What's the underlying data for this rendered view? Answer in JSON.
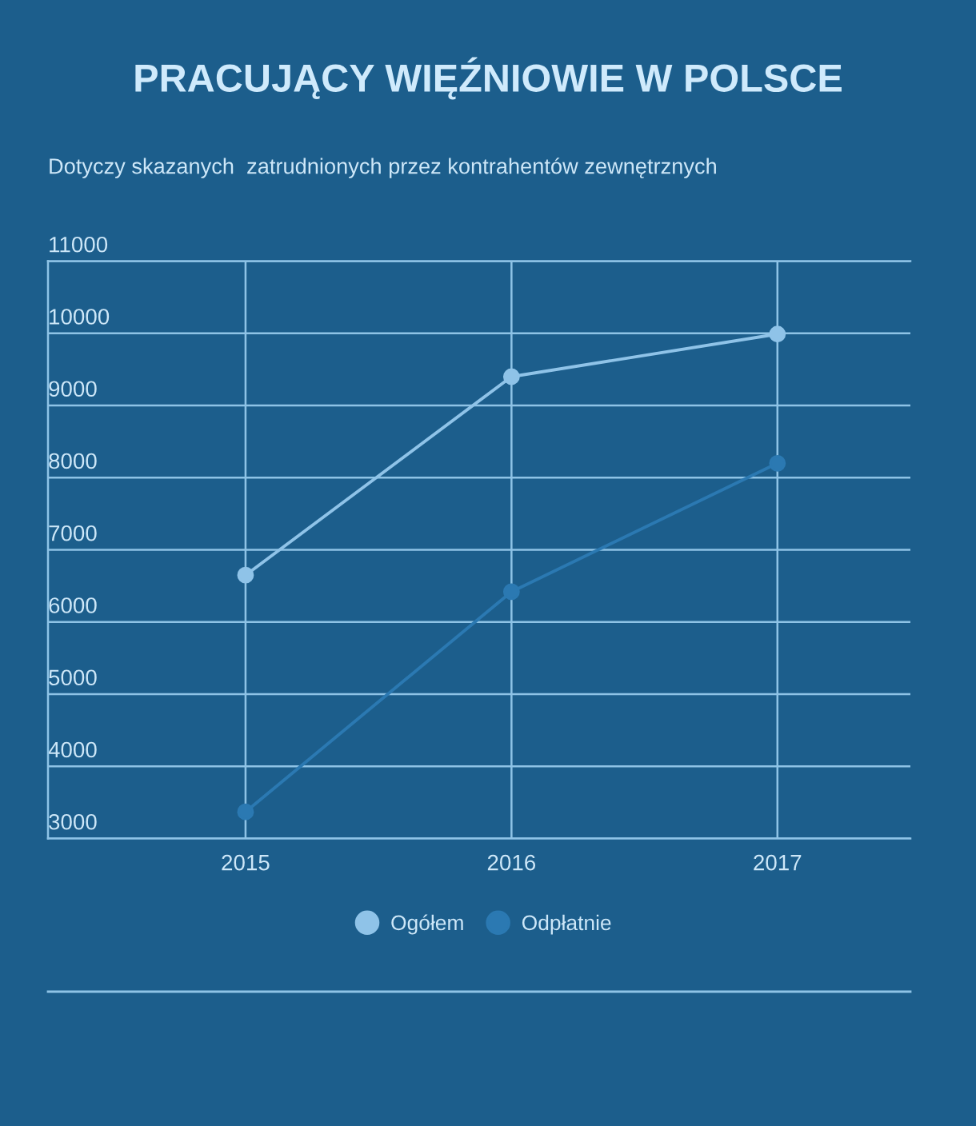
{
  "chart_data": {
    "type": "line",
    "title": "PRACUJĄCY WIĘŹNIOWIE W POLSCE",
    "subtitle": "Dotyczy skazanych  zatrudnionych przez kontrahentów zewnętrznych",
    "categories": [
      "2015",
      "2016",
      "2017"
    ],
    "series": [
      {
        "name": "Ogółem",
        "color": "#8fc3e8",
        "values": [
          6650,
          9400,
          9990
        ]
      },
      {
        "name": "Odpłatnie",
        "color": "#2b79b2",
        "values": [
          3370,
          6420,
          8200
        ]
      }
    ],
    "ylim": [
      3000,
      11000
    ],
    "yticks": [
      3000,
      4000,
      5000,
      6000,
      7000,
      8000,
      9000,
      10000,
      11000
    ],
    "grid": true,
    "legend": "bottom",
    "marker": "circle",
    "line_style": "solid"
  }
}
